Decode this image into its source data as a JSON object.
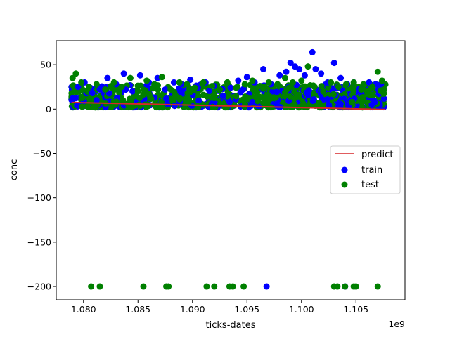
{
  "chart_data": {
    "type": "scatter",
    "xlabel": "ticks-dates",
    "ylabel": "conc",
    "x_offset_label": "1e9",
    "x_scale": 1000000000.0,
    "xlim": [
      1.0775,
      1.1095
    ],
    "ylim": [
      -215,
      77
    ],
    "x_ticks": [
      1.08,
      1.085,
      1.09,
      1.095,
      1.1,
      1.105
    ],
    "x_tick_labels": [
      "1.080",
      "1.085",
      "1.090",
      "1.095",
      "1.100",
      "1.105"
    ],
    "y_ticks": [
      50,
      0,
      -50,
      -100,
      -150,
      -200
    ],
    "y_tick_labels": [
      "50",
      "0",
      "−50",
      "−100",
      "−150",
      "−200"
    ],
    "legend_position": "center-right",
    "grid": false,
    "series": [
      {
        "name": "predict",
        "kind": "line",
        "color": "#d62728",
        "x": [
          1.0789,
          1.1077
        ],
        "y": [
          7.5,
          -0.5
        ]
      },
      {
        "name": "train",
        "kind": "scatter",
        "color": "#0000ff",
        "x": [
          1.079,
          1.0795,
          1.0801,
          1.0808,
          1.0815,
          1.0822,
          1.083,
          1.0837,
          1.0845,
          1.0852,
          1.086,
          1.0868,
          1.0875,
          1.0883,
          1.089,
          1.0898,
          1.0905,
          1.0912,
          1.092,
          1.0928,
          1.0935,
          1.0942,
          1.095,
          1.0957,
          1.0965,
          1.0972,
          1.098,
          1.0986,
          1.099,
          1.0994,
          1.0998,
          1.1003,
          1.101,
          1.1013,
          1.1018,
          1.1024,
          1.103,
          1.1036,
          1.1042,
          1.1048,
          1.1055,
          1.1062,
          1.1068,
          1.1073,
          1.0968,
          1.104,
          1.0812,
          1.0876,
          1.0934
        ],
        "y": [
          12,
          25,
          30,
          18,
          22,
          35,
          28,
          40,
          20,
          38,
          30,
          35,
          22,
          30,
          28,
          33,
          24,
          30,
          26,
          15,
          24,
          32,
          36,
          30,
          45,
          28,
          38,
          42,
          52,
          48,
          45,
          38,
          64,
          45,
          40,
          30,
          52,
          35,
          28,
          30,
          22,
          30,
          28,
          28,
          -200,
          -200,
          10,
          12,
          8
        ]
      },
      {
        "name": "test",
        "kind": "scatter",
        "color": "#008000",
        "x": [
          1.079,
          1.0793,
          1.0798,
          1.0805,
          1.0812,
          1.082,
          1.0828,
          1.0835,
          1.0843,
          1.085,
          1.0858,
          1.0865,
          1.0872,
          1.088,
          1.0888,
          1.0895,
          1.0902,
          1.091,
          1.0918,
          1.0925,
          1.0932,
          1.094,
          1.0948,
          1.0955,
          1.0962,
          1.097,
          1.0978,
          1.0985,
          1.0992,
          1.1,
          1.1006,
          1.1012,
          1.102,
          1.1027,
          1.1034,
          1.1041,
          1.1048,
          1.1055,
          1.106,
          1.1065,
          1.107,
          1.1074,
          1.1076,
          1.0807,
          1.0815,
          1.0855,
          1.0876,
          1.0878,
          1.0913,
          1.092,
          1.0934,
          1.0937,
          1.0947,
          1.103,
          1.1033,
          1.104,
          1.1048,
          1.105,
          1.107
        ],
        "y": [
          35,
          40,
          30,
          25,
          28,
          22,
          30,
          25,
          35,
          20,
          32,
          28,
          36,
          22,
          30,
          28,
          24,
          30,
          26,
          22,
          30,
          24,
          28,
          32,
          26,
          30,
          28,
          35,
          30,
          32,
          48,
          25,
          20,
          30,
          25,
          28,
          30,
          22,
          20,
          25,
          42,
          32,
          22,
          -200,
          -200,
          -200,
          -200,
          -200,
          -200,
          -200,
          -200,
          -200,
          -200,
          -200,
          -200,
          -200,
          -200,
          -200,
          -200
        ]
      }
    ]
  }
}
